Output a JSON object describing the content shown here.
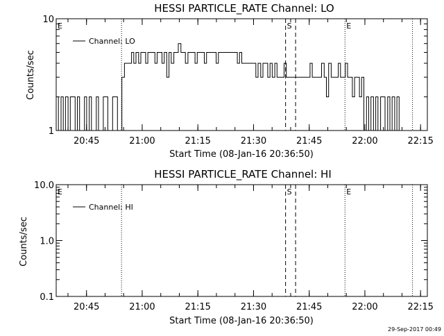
{
  "footer": {
    "timestamp": "29-Sep-2017 00:49"
  },
  "chart_data": [
    {
      "type": "line",
      "title": "HESSI PARTICLE_RATE Channel: LO",
      "xlabel": "Start Time (08-Jan-16 20:36:50)",
      "ylabel": "Counts/sec",
      "yscale": "log",
      "ylim": [
        1,
        10
      ],
      "ytick_labels": [
        "1",
        "10"
      ],
      "x_range_min": [
        0,
        100
      ],
      "xtick_labels": [
        "20:45",
        "21:00",
        "21:15",
        "21:30",
        "21:45",
        "22:00",
        "22:15"
      ],
      "xtick_min": [
        8.17,
        23.17,
        38.17,
        53.17,
        68.17,
        83.17,
        98.17
      ],
      "grid": false,
      "legend": {
        "position": "top-left",
        "entries": [
          "Channel: LO"
        ]
      },
      "markers": [
        {
          "label": "E",
          "x_min": 0.0,
          "style": "dotted"
        },
        {
          "label": "",
          "x_min": 17.6,
          "style": "dotted"
        },
        {
          "label": "S",
          "x_min": 61.8,
          "style": "dashed"
        },
        {
          "label": "",
          "x_min": 64.5,
          "style": "dashed"
        },
        {
          "label": "E",
          "x_min": 77.8,
          "style": "dotted"
        },
        {
          "label": "",
          "x_min": 96.0,
          "style": "dotted"
        }
      ],
      "series": [
        {
          "name": "Channel: LO",
          "color": "#000000",
          "x_min": [
            0,
            0.6,
            1.3,
            1.9,
            2.5,
            3.2,
            3.8,
            4.4,
            5.1,
            5.7,
            6.3,
            7.0,
            7.6,
            8.2,
            8.9,
            9.5,
            10.1,
            10.8,
            11.4,
            12.0,
            12.7,
            13.3,
            13.9,
            14.6,
            15.2,
            15.8,
            16.5,
            17.1,
            17.7,
            18.4,
            19.0,
            19.6,
            20.3,
            20.9,
            21.5,
            22.2,
            22.8,
            23.4,
            24.1,
            24.7,
            25.3,
            26.0,
            26.6,
            27.2,
            27.9,
            28.5,
            29.1,
            29.8,
            30.4,
            31.0,
            31.7,
            32.3,
            32.9,
            33.6,
            34.2,
            34.8,
            35.5,
            36.1,
            36.7,
            37.4,
            38.0,
            38.6,
            39.3,
            39.9,
            40.5,
            41.2,
            41.8,
            42.4,
            43.1,
            43.7,
            44.3,
            45.0,
            45.6,
            46.2,
            46.9,
            47.5,
            48.1,
            48.8,
            49.4,
            50.0,
            50.6,
            51.3,
            51.9,
            52.5,
            53.2,
            53.8,
            54.4,
            55.1,
            55.7,
            56.3,
            57.0,
            57.6,
            58.2,
            58.9,
            59.5,
            60.1,
            60.8,
            61.4,
            62.0,
            62.7,
            63.3,
            63.9,
            64.6,
            65.2,
            65.8,
            66.5,
            67.1,
            67.7,
            68.4,
            69.0,
            69.6,
            70.3,
            70.9,
            71.5,
            72.2,
            72.8,
            73.4,
            74.1,
            74.7,
            75.3,
            76.0,
            76.6,
            77.2,
            77.9,
            78.5,
            79.1,
            79.8,
            80.4,
            81.0,
            81.7,
            82.3,
            82.9,
            83.6,
            84.2,
            84.8,
            85.5,
            86.1,
            86.7,
            87.4,
            88.0,
            88.6,
            89.3,
            89.9,
            90.5,
            91.2,
            91.8,
            92.4,
            93.1,
            93.7
          ],
          "y": [
            2,
            1,
            2,
            1,
            2,
            1,
            2,
            2,
            1,
            2,
            1,
            1,
            2,
            1,
            2,
            1,
            1,
            2,
            1,
            1,
            2,
            2,
            1,
            1,
            2,
            2,
            1,
            1,
            3,
            4,
            4,
            4,
            5,
            4,
            5,
            4,
            5,
            5,
            4,
            5,
            5,
            5,
            4,
            5,
            5,
            4,
            5,
            3,
            5,
            4,
            5,
            5,
            6,
            5,
            5,
            4,
            5,
            5,
            5,
            4,
            5,
            5,
            5,
            4,
            5,
            5,
            5,
            5,
            4,
            5,
            5,
            5,
            5,
            5,
            5,
            5,
            5,
            4,
            5,
            4,
            4,
            4,
            4,
            4,
            4,
            3,
            4,
            3,
            4,
            4,
            3,
            4,
            3,
            4,
            3,
            3,
            3,
            4,
            3,
            3,
            3,
            3,
            3,
            3,
            3,
            3,
            3,
            3,
            4,
            3,
            3,
            3,
            3,
            4,
            3,
            2,
            4,
            3,
            3,
            3,
            4,
            3,
            3,
            4,
            3,
            3,
            2,
            3,
            3,
            2,
            3,
            1,
            2,
            1,
            2,
            1,
            2,
            1,
            2,
            2,
            1,
            2,
            1,
            2,
            1,
            2,
            1
          ]
        }
      ]
    },
    {
      "type": "line",
      "title": "HESSI PARTICLE_RATE Channel: HI",
      "xlabel": "Start Time (08-Jan-16 20:36:50)",
      "ylabel": "Counts/sec",
      "yscale": "log",
      "ylim": [
        0.1,
        10.0
      ],
      "ytick_labels": [
        "0.1",
        "1.0",
        "10.0"
      ],
      "x_range_min": [
        0,
        100
      ],
      "xtick_labels": [
        "20:45",
        "21:00",
        "21:15",
        "21:30",
        "21:45",
        "22:00",
        "22:15"
      ],
      "xtick_min": [
        8.17,
        23.17,
        38.17,
        53.17,
        68.17,
        83.17,
        98.17
      ],
      "grid": false,
      "legend": {
        "position": "top-left",
        "entries": [
          "Channel: HI"
        ]
      },
      "markers": [
        {
          "label": "E",
          "x_min": 0.0,
          "style": "dotted"
        },
        {
          "label": "",
          "x_min": 17.6,
          "style": "dotted"
        },
        {
          "label": "S",
          "x_min": 61.8,
          "style": "dashed"
        },
        {
          "label": "",
          "x_min": 64.5,
          "style": "dashed"
        },
        {
          "label": "E",
          "x_min": 77.8,
          "style": "dotted"
        },
        {
          "label": "",
          "x_min": 96.0,
          "style": "dotted"
        }
      ],
      "series": [
        {
          "name": "Channel: HI",
          "color": "#000000",
          "x_min": [],
          "y": []
        }
      ]
    }
  ]
}
